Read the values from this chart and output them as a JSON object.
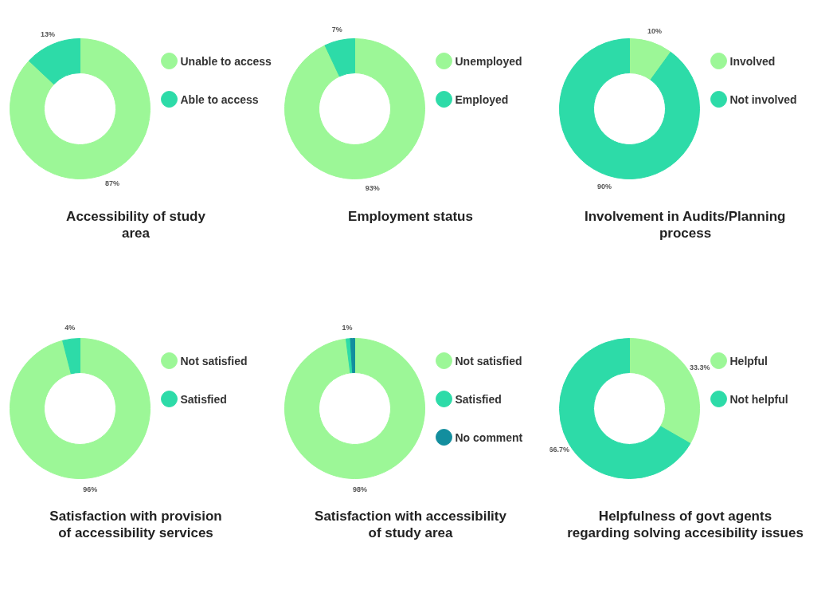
{
  "chart_data": [
    {
      "type": "donut",
      "title": "Accessibility of study\narea",
      "categories": [
        "Unable to access",
        "Able to access"
      ],
      "values": [
        87,
        13
      ],
      "colors": [
        "#9cf797",
        "#2ddba8"
      ],
      "value_labels": [
        "87%",
        "13%"
      ],
      "legend": "right"
    },
    {
      "type": "donut",
      "title": "Employment status",
      "categories": [
        "Unemployed",
        "Employed"
      ],
      "values": [
        93,
        7
      ],
      "colors": [
        "#9cf797",
        "#2ddba8"
      ],
      "value_labels": [
        "93%",
        "7%"
      ],
      "legend": "right"
    },
    {
      "type": "donut",
      "title": "Involvement in Audits/Planning\nprocess",
      "categories": [
        "Involved",
        "Not involved"
      ],
      "values": [
        10,
        90
      ],
      "colors": [
        "#9cf797",
        "#2ddba8"
      ],
      "value_labels": [
        "10%",
        "90%"
      ],
      "legend": "right"
    },
    {
      "type": "donut",
      "title": "Satisfaction with provision\nof accessibility services",
      "categories": [
        "Not satisfied",
        "Satisfied"
      ],
      "values": [
        96,
        4
      ],
      "colors": [
        "#9cf797",
        "#2ddba8"
      ],
      "value_labels": [
        "96%",
        "4%"
      ],
      "legend": "right"
    },
    {
      "type": "donut",
      "title": "Satisfaction with accessibility\nof study area",
      "categories": [
        "Not satisfied",
        "Satisfied",
        "No comment"
      ],
      "values": [
        98,
        1,
        1
      ],
      "colors": [
        "#9cf797",
        "#2ddba8",
        "#138e9e"
      ],
      "value_labels": [
        "98%",
        "1%",
        null
      ],
      "legend": "right"
    },
    {
      "type": "donut",
      "title": "Helpfulness of govt agents\nregarding solving accesibility issues",
      "categories": [
        "Helpful",
        "Not helpful"
      ],
      "values": [
        33.3,
        66.7
      ],
      "colors": [
        "#9cf797",
        "#2ddba8"
      ],
      "value_labels": [
        "33.3%",
        "66.7%"
      ],
      "legend": "right"
    }
  ]
}
